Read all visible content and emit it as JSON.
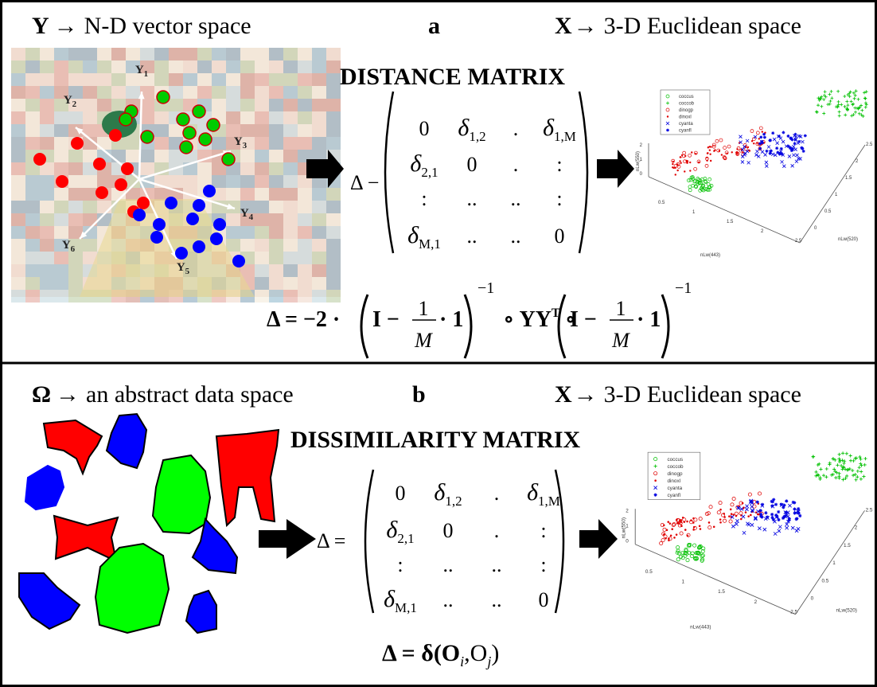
{
  "panels": [
    {
      "header": {
        "symbol": "Y",
        "arrow": "→",
        "text": "N-D vector space"
      },
      "label": "a",
      "target": {
        "symbol": "X",
        "arrow": "→",
        "text": "3-D Euclidean space"
      },
      "matrix_title": "DISTANCE MATRIX",
      "axes": [
        {
          "symbol": "Y",
          "sub": "1"
        },
        {
          "symbol": "Y",
          "sub": "2"
        },
        {
          "symbol": "Y",
          "sub": "3"
        },
        {
          "symbol": "Y",
          "sub": "4"
        },
        {
          "symbol": "Y",
          "sub": "5"
        },
        {
          "symbol": "Y",
          "sub": "6"
        }
      ],
      "matrix": {
        "lhs": "Δ −",
        "rows": [
          [
            "0",
            {
              "symbol": "δ",
              "sub": "1,2"
            },
            ".",
            {
              "symbol": "δ",
              "sub": "1,M"
            }
          ],
          [
            {
              "symbol": "δ",
              "sub": "2,1"
            },
            "0",
            ".",
            ":"
          ],
          [
            ":",
            "..",
            "..",
            ":"
          ],
          [
            {
              "symbol": "δ",
              "sub": "M,1"
            },
            "..",
            "..",
            "0"
          ]
        ]
      },
      "formula": {
        "lhs": "Δ = −2 ·",
        "middle": "∘ YY",
        "middle_sup": "T",
        "middle_end": "∘",
        "terms": [
          {
            "prefix": "I −",
            "num": "1",
            "den": "M",
            "suffix": "· 1",
            "exp": "−1"
          },
          {
            "prefix": "I −",
            "num": "1",
            "den": "M",
            "suffix": "· 1",
            "exp": "−1"
          }
        ]
      },
      "plot": {
        "legend": [
          {
            "name": "coccus",
            "color": "#00c000",
            "marker": "o"
          },
          {
            "name": "coccob",
            "color": "#00c000",
            "marker": "+"
          },
          {
            "name": "dinogp",
            "color": "#e00000",
            "marker": "o"
          },
          {
            "name": "dinoxl",
            "color": "#e00000",
            "marker": "."
          },
          {
            "name": "cyanta",
            "color": "#0000e0",
            "marker": "x"
          },
          {
            "name": "cyanfl",
            "color": "#0000e0",
            "marker": "*"
          }
        ],
        "axis_labels": {
          "x": "nLw(443)",
          "y": "nLw(520)",
          "z": "nLw(550)"
        },
        "xticks": [
          "0.5",
          "1",
          "1.5",
          "2",
          "2.5"
        ],
        "yticks": [
          "0",
          "0.5",
          "1",
          "1.5",
          "2",
          "2.5"
        ],
        "zticks": [
          "2",
          "1",
          "0"
        ]
      }
    },
    {
      "header": {
        "symbol": "Ω",
        "arrow": "→",
        "text": "an abstract data space"
      },
      "label": "b",
      "target": {
        "symbol": "X",
        "arrow": "→",
        "text": "3-D Euclidean space"
      },
      "matrix_title": "DISSIMILARITY MATRIX",
      "matrix": {
        "lhs": "Δ =",
        "rows": [
          [
            "0",
            {
              "symbol": "δ",
              "sub": "1,2"
            },
            ".",
            {
              "symbol": "δ",
              "sub": "1,M"
            }
          ],
          [
            {
              "symbol": "δ",
              "sub": "2,1"
            },
            "0",
            ".",
            ":"
          ],
          [
            ":",
            "..",
            "..",
            ":"
          ],
          [
            {
              "symbol": "δ",
              "sub": "M,1"
            },
            "..",
            "..",
            "0"
          ]
        ]
      },
      "formula": {
        "lhs": "Δ = δ(O",
        "sub_i": "i",
        "mid": ",O",
        "sub_j": "j",
        "end": ")"
      },
      "plot": {
        "legend": [
          {
            "name": "coccus",
            "color": "#00c000",
            "marker": "o"
          },
          {
            "name": "coccob",
            "color": "#00c000",
            "marker": "+"
          },
          {
            "name": "dinogp",
            "color": "#e00000",
            "marker": "o"
          },
          {
            "name": "dinoxl",
            "color": "#e00000",
            "marker": "."
          },
          {
            "name": "cyanta",
            "color": "#0000e0",
            "marker": "x"
          },
          {
            "name": "cyanfl",
            "color": "#0000e0",
            "marker": "*"
          }
        ],
        "axis_labels": {
          "x": "nLw(443)",
          "y": "nLw(520)",
          "z": "nLw(550)"
        },
        "xticks": [
          "0.5",
          "1",
          "1.5",
          "2",
          "2.5"
        ],
        "yticks": [
          "0",
          "0.5",
          "1",
          "1.5",
          "2",
          "2.5"
        ],
        "zticks": [
          "2",
          "1",
          "0"
        ]
      }
    }
  ]
}
